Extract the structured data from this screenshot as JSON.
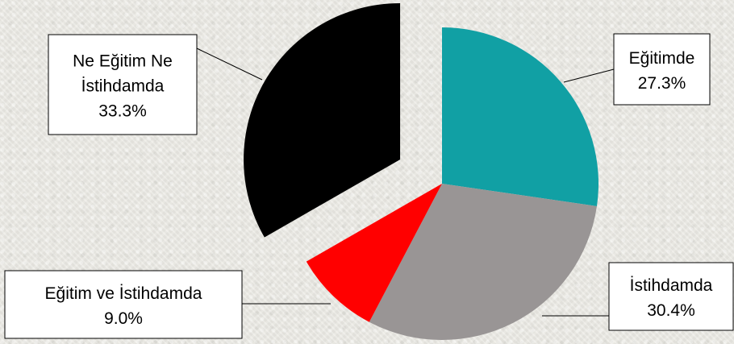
{
  "chart_data": {
    "type": "pie",
    "title": "",
    "slices": [
      {
        "label": "Eğitimde",
        "value": 27.3,
        "display": "27.3%",
        "color": "#11a0a4"
      },
      {
        "label": "İstihdamda",
        "value": 30.4,
        "display": "30.4%",
        "color": "#999595"
      },
      {
        "label": "Eğitim ve İstihdamda",
        "value": 9.0,
        "display": "9.0%",
        "color": "#ff0000"
      },
      {
        "label": "Ne Eğitim Ne İstihdamda",
        "value": 33.3,
        "display": "33.3%",
        "color": "#000000",
        "exploded": true
      }
    ],
    "legend": "none",
    "data_labels": "callouts"
  }
}
